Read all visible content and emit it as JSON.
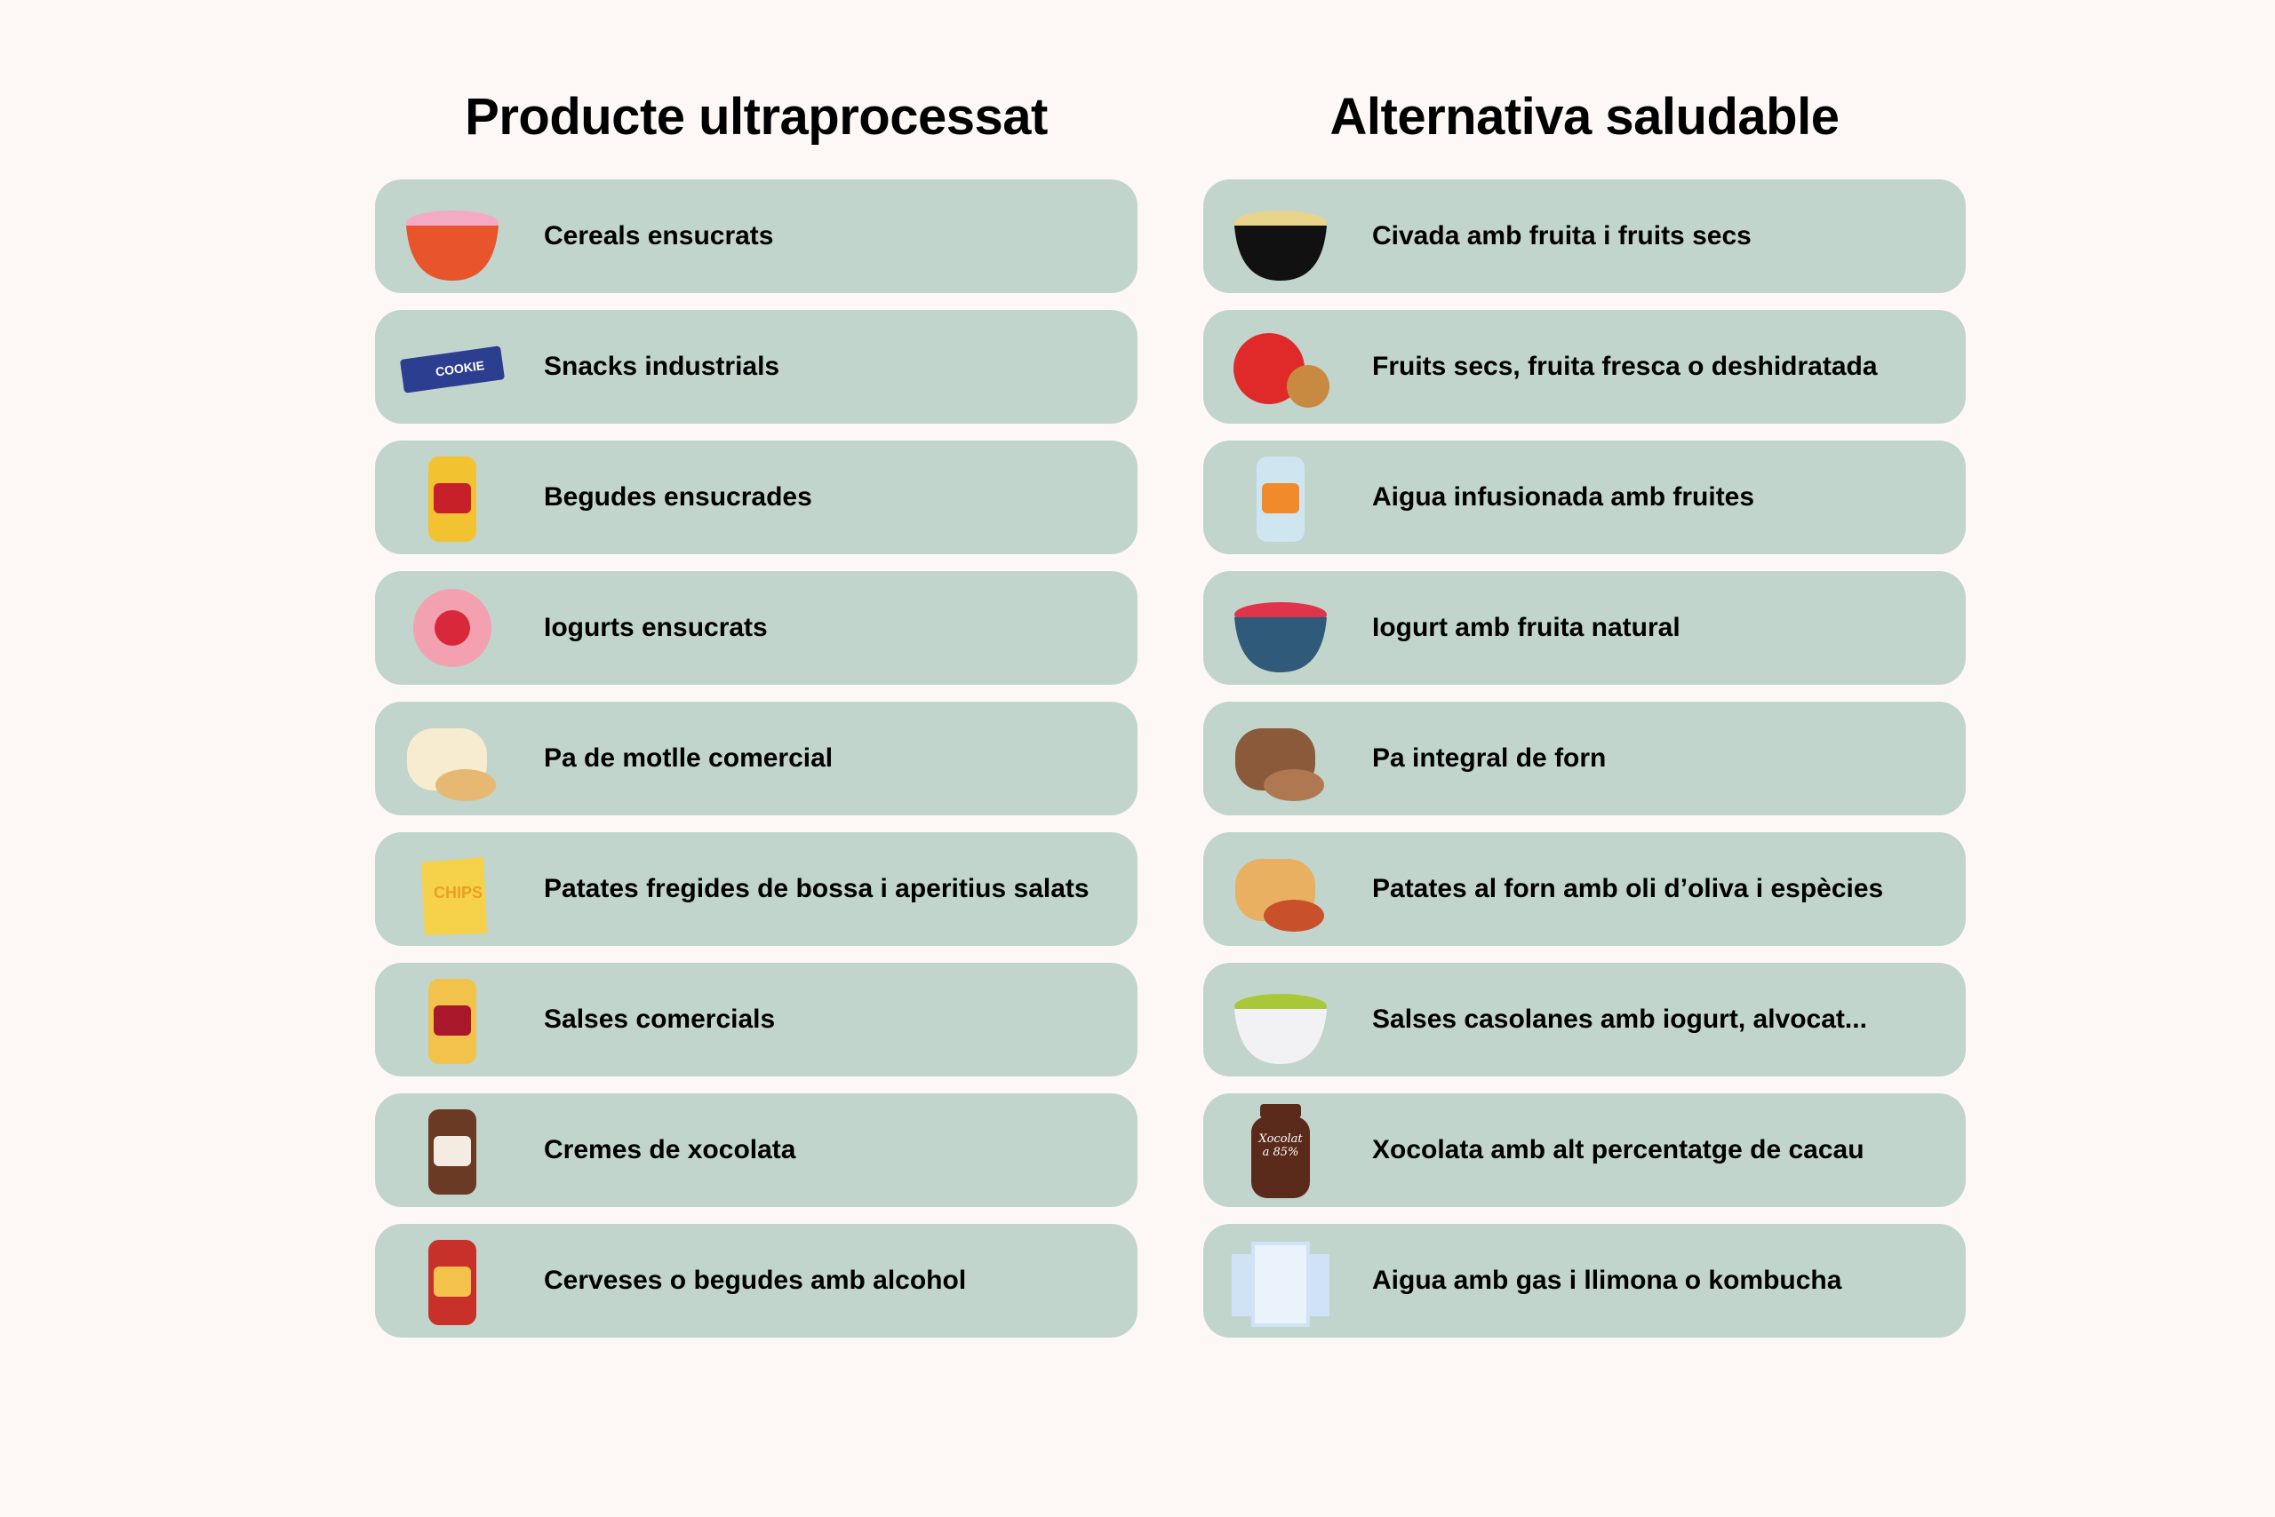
{
  "background_color": "#fdf8f5",
  "card_color": "#c1d5cd",
  "left_column": {
    "title": "Producte ultraprocessat",
    "items": [
      {
        "label": "Cereals ensucrats",
        "icon": "cereal-bowl-icon",
        "colors": [
          "#e8542c",
          "#f4a9c4"
        ]
      },
      {
        "label": "Snacks industrials",
        "icon": "cookie-bar-icon",
        "colors": [
          "#2c3e8f",
          "#ffffff"
        ]
      },
      {
        "label": "Begudes ensucrades",
        "icon": "soda-cans-icon",
        "colors": [
          "#f2c230",
          "#c8202a"
        ]
      },
      {
        "label": "Iogurts ensucrats",
        "icon": "strawberry-yogurt-icon",
        "colors": [
          "#f3a0b0",
          "#d8283a"
        ]
      },
      {
        "label": "Pa de motlle comercial",
        "icon": "sliced-bread-icon",
        "colors": [
          "#f8ecd0",
          "#e6b872"
        ]
      },
      {
        "label": "Patates fregides de bossa i aperitius salats",
        "icon": "chips-bag-icon",
        "colors": [
          "#f6d24a",
          "#e8a020"
        ]
      },
      {
        "label": "Salses comercials",
        "icon": "sauce-bottles-icon",
        "colors": [
          "#f2c24a",
          "#a8182a"
        ]
      },
      {
        "label": "Cremes de xocolata",
        "icon": "chocolate-spread-jar-icon",
        "colors": [
          "#6b3a24",
          "#f4ece0"
        ]
      },
      {
        "label": "Cerveses o begudes amb alcohol",
        "icon": "beer-can-icon",
        "colors": [
          "#c8302a",
          "#f2c24a"
        ]
      }
    ]
  },
  "right_column": {
    "title": "Alternativa saludable",
    "items": [
      {
        "label": "Civada amb fruita i fruits secs",
        "icon": "oatmeal-bowl-icon",
        "colors": [
          "#111111",
          "#e8d48a"
        ]
      },
      {
        "label": "Fruits secs, fruita fresca o deshidratada",
        "icon": "apple-walnut-icon",
        "colors": [
          "#e02a2a",
          "#c88a40"
        ]
      },
      {
        "label": "Aigua infusionada amb fruites",
        "icon": "infused-water-bottle-icon",
        "colors": [
          "#cfe6f0",
          "#f08a2a"
        ]
      },
      {
        "label": "Iogurt amb fruita natural",
        "icon": "yogurt-fruit-bowl-icon",
        "colors": [
          "#2f5a7a",
          "#e0344a"
        ]
      },
      {
        "label": "Pa integral de forn",
        "icon": "wholegrain-bread-icon",
        "colors": [
          "#8a5a3a",
          "#b07850"
        ]
      },
      {
        "label": "Patates al forn amb oli d’oliva i espècies",
        "icon": "potatoes-spice-icon",
        "colors": [
          "#e8b060",
          "#c8502a"
        ]
      },
      {
        "label": "Salses casolanes amb iogurt, alvocat...",
        "icon": "guacamole-bowl-icon",
        "colors": [
          "#f2f2f4",
          "#a8c83a"
        ]
      },
      {
        "label": "Xocolata amb alt percentatge de cacau",
        "icon": "dark-chocolate-jar-icon",
        "colors": [
          "#5a2a1a",
          "#ffffff"
        ],
        "icon_text": "Xocolata 85%"
      },
      {
        "label": "Aigua amb gas i llimona o kombucha",
        "icon": "sparkling-water-glasses-icon",
        "colors": [
          "#cfe2f6",
          "#eaf2fb"
        ]
      }
    ]
  }
}
